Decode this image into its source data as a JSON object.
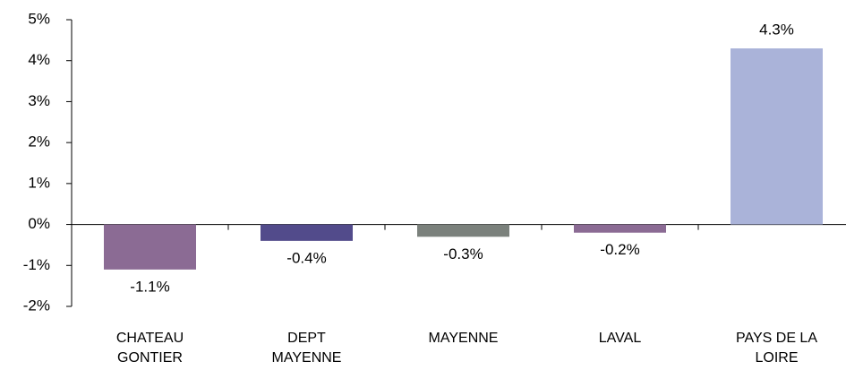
{
  "chart_data": {
    "type": "bar",
    "categories": [
      "CHATEAU GONTIER",
      "DEPT MAYENNE",
      "MAYENNE",
      "LAVAL",
      "PAYS DE LA LOIRE"
    ],
    "values": [
      -1.1,
      -0.4,
      -0.3,
      -0.2,
      4.3
    ],
    "value_labels": [
      "-1.1%",
      "-0.4%",
      "-0.3%",
      "-0.2%",
      "4.3%"
    ],
    "colors": [
      "#8b6b94",
      "#524b8b",
      "#7b817c",
      "#8b6b94",
      "#aab3d9"
    ],
    "ylim": [
      -2,
      5
    ],
    "yticks": [
      {
        "value": -2,
        "label": "-2%"
      },
      {
        "value": -1,
        "label": "-1%"
      },
      {
        "value": 0,
        "label": "0%"
      },
      {
        "value": 1,
        "label": "1%"
      },
      {
        "value": 2,
        "label": "2%"
      },
      {
        "value": 3,
        "label": "3%"
      },
      {
        "value": 4,
        "label": "4%"
      },
      {
        "value": 5,
        "label": "5%"
      }
    ],
    "grid": false
  }
}
